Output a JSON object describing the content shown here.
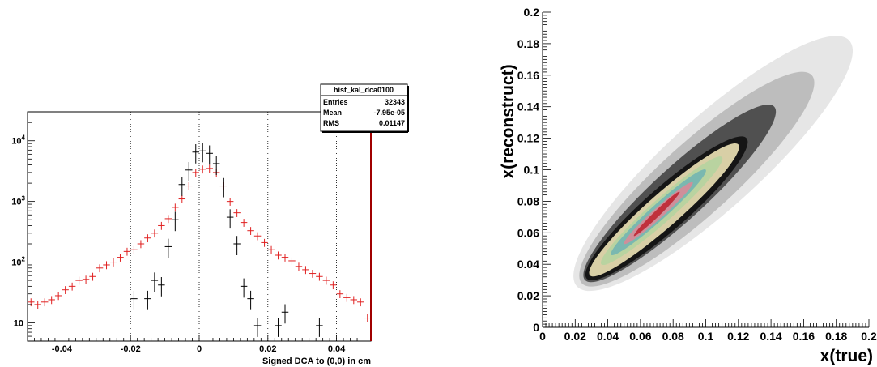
{
  "chart_data": [
    {
      "type": "histogram",
      "xlabel": "Signed DCA to (0,0) in cm",
      "ylabel": "",
      "xlim": [
        -0.05,
        0.05
      ],
      "ylim": [
        5,
        30000
      ],
      "yscale": "log",
      "grid_x": [
        -0.04,
        -0.02,
        0,
        0.02,
        0.04
      ],
      "x_tick_labels": [
        "-0.04",
        "-0.02",
        "0",
        "0.02",
        "0.04"
      ],
      "y_ticks": [
        {
          "value": 10,
          "mantissa": "10",
          "exp": ""
        },
        {
          "value": 100,
          "mantissa": "10",
          "exp": "2"
        },
        {
          "value": 1000,
          "mantissa": "10",
          "exp": "3"
        },
        {
          "value": 10000,
          "mantissa": "10",
          "exp": "4"
        }
      ],
      "stats_box": {
        "title": "hist_kal_dca0100",
        "rows": [
          {
            "name": "Entries",
            "value": "32343"
          },
          {
            "name": "Mean",
            "value": "-7.95e-05"
          },
          {
            "name": "RMS",
            "value": "0.01147"
          }
        ]
      },
      "series": [
        {
          "color": "#e02020",
          "bin_width": 0.002,
          "x": [
            -0.049,
            -0.047,
            -0.045,
            -0.043,
            -0.041,
            -0.039,
            -0.037,
            -0.035,
            -0.033,
            -0.031,
            -0.029,
            -0.027,
            -0.025,
            -0.023,
            -0.021,
            -0.019,
            -0.017,
            -0.015,
            -0.013,
            -0.011,
            -0.009,
            -0.007,
            -0.005,
            -0.003,
            -0.001,
            0.001,
            0.003,
            0.005,
            0.007,
            0.009,
            0.011,
            0.013,
            0.015,
            0.017,
            0.019,
            0.021,
            0.023,
            0.025,
            0.027,
            0.029,
            0.031,
            0.033,
            0.035,
            0.037,
            0.039,
            0.041,
            0.043,
            0.045,
            0.047,
            0.049
          ],
          "y": [
            22,
            20,
            22,
            24,
            28,
            35,
            40,
            50,
            52,
            58,
            80,
            90,
            100,
            120,
            150,
            160,
            200,
            250,
            300,
            400,
            520,
            800,
            1100,
            1800,
            3000,
            3400,
            3500,
            3000,
            1800,
            1000,
            650,
            450,
            330,
            270,
            210,
            160,
            130,
            120,
            105,
            85,
            75,
            65,
            58,
            50,
            42,
            30,
            26,
            24,
            22,
            12
          ],
          "yerr_rel": 0.15
        },
        {
          "color": "#000000",
          "bin_width": 0.002,
          "x": [
            -0.019,
            -0.015,
            -0.013,
            -0.011,
            -0.009,
            -0.007,
            -0.005,
            -0.003,
            -0.001,
            0.001,
            0.003,
            0.005,
            0.007,
            0.009,
            0.011,
            0.013,
            0.015,
            0.017,
            0.023,
            0.025,
            0.035
          ],
          "y": [
            25,
            25,
            50,
            42,
            180,
            500,
            1900,
            3300,
            6500,
            6800,
            6200,
            4200,
            1800,
            550,
            200,
            40,
            25,
            9,
            9,
            15,
            9
          ],
          "yerr_rel": 0.35
        }
      ]
    },
    {
      "type": "heatmap",
      "xlabel": "x(true)",
      "ylabel": "x(reconstruct)",
      "xlim": [
        0,
        0.2
      ],
      "ylim": [
        0,
        0.2
      ],
      "x_tick_labels": [
        "0",
        "0.02",
        "0.04",
        "0.06",
        "0.08",
        "0.1",
        "0.12",
        "0.14",
        "0.16",
        "0.18",
        "0.2"
      ],
      "y_tick_labels": [
        "0",
        "0.02",
        "0.04",
        "0.06",
        "0.08",
        "0.1",
        "0.12",
        "0.14",
        "0.16",
        "0.18",
        "0.2"
      ],
      "tick_values": [
        0,
        0.02,
        0.04,
        0.06,
        0.08,
        0.1,
        0.12,
        0.14,
        0.16,
        0.18,
        0.2
      ],
      "contours": [
        {
          "level": "outer",
          "color": "#e6e6e6",
          "x0": 0.021,
          "y0": 0.026,
          "x1": 0.188,
          "y1": 0.182,
          "w": 0.028
        },
        {
          "level": "grey",
          "color": "#bdbdbd",
          "x0": 0.024,
          "y0": 0.028,
          "x1": 0.165,
          "y1": 0.16,
          "w": 0.022
        },
        {
          "level": "dark",
          "color": "#505050",
          "x0": 0.026,
          "y0": 0.03,
          "x1": 0.142,
          "y1": 0.14,
          "w": 0.016
        },
        {
          "level": "black",
          "color": "#151515",
          "x0": 0.027,
          "y0": 0.031,
          "x1": 0.125,
          "y1": 0.12,
          "w": 0.013
        },
        {
          "level": "tan",
          "color": "#d8cfa6",
          "x0": 0.029,
          "y0": 0.033,
          "x1": 0.12,
          "y1": 0.116,
          "w": 0.01
        },
        {
          "level": "lightgreen",
          "color": "#b9d3a0",
          "x0": 0.036,
          "y0": 0.04,
          "x1": 0.11,
          "y1": 0.108,
          "w": 0.007
        },
        {
          "level": "teal",
          "color": "#7ab8b0",
          "x0": 0.042,
          "y0": 0.046,
          "x1": 0.1,
          "y1": 0.1,
          "w": 0.0048
        },
        {
          "level": "pink",
          "color": "#cf8f9a",
          "x0": 0.05,
          "y0": 0.053,
          "x1": 0.092,
          "y1": 0.092,
          "w": 0.0032
        },
        {
          "level": "red",
          "color": "#c0303c",
          "x0": 0.056,
          "y0": 0.058,
          "x1": 0.084,
          "y1": 0.086,
          "w": 0.0018
        }
      ]
    }
  ]
}
